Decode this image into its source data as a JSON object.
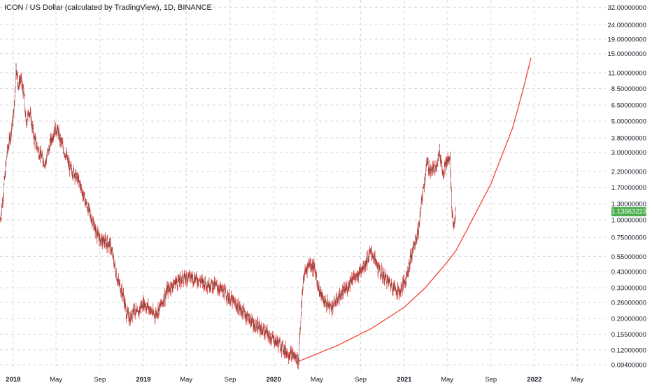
{
  "header": {
    "title": "ICON / US Dollar (calculated by TradingView), 1D, BINANCE"
  },
  "current_price": {
    "label": "1.13663223",
    "value": 1.13663223,
    "color": "#4caf50"
  },
  "colors": {
    "candle": "#d84a4a",
    "trend": "#f44336",
    "grid": "#d8d8d8"
  },
  "chart_data": {
    "type": "line",
    "title": "ICON / US Dollar (calculated by TradingView), 1D, BINANCE",
    "y_scale": "log",
    "ylim": [
      0.085,
      36
    ],
    "xlim": [
      "2017-11-25",
      "2022-07-20"
    ],
    "grid": true,
    "y_ticks": [
      {
        "label": "32.00000000",
        "value": 32
      },
      {
        "label": "24.00000000",
        "value": 24
      },
      {
        "label": "19.00000000",
        "value": 19
      },
      {
        "label": "15.00000000",
        "value": 15
      },
      {
        "label": "11.00000000",
        "value": 11
      },
      {
        "label": "8.50000000",
        "value": 8.5
      },
      {
        "label": "6.50000000",
        "value": 6.5
      },
      {
        "label": "5.00000000",
        "value": 5
      },
      {
        "label": "3.80000000",
        "value": 3.8
      },
      {
        "label": "3.00000000",
        "value": 3
      },
      {
        "label": "2.20000000",
        "value": 2.2
      },
      {
        "label": "1.70000000",
        "value": 1.7
      },
      {
        "label": "1.30000000",
        "value": 1.3
      },
      {
        "label": "1.00000000",
        "value": 1.0
      },
      {
        "label": "0.75000000",
        "value": 0.75
      },
      {
        "label": "0.55000000",
        "value": 0.55
      },
      {
        "label": "0.43000000",
        "value": 0.43
      },
      {
        "label": "0.33000000",
        "value": 0.33
      },
      {
        "label": "0.26000000",
        "value": 0.26
      },
      {
        "label": "0.20000000",
        "value": 0.2
      },
      {
        "label": "0.15500000",
        "value": 0.155
      },
      {
        "label": "0.12000000",
        "value": 0.12
      },
      {
        "label": "0.09400000",
        "value": 0.094
      }
    ],
    "x_ticks": [
      {
        "label": "2018",
        "date": "2018-01-01",
        "bold": true
      },
      {
        "label": "May",
        "date": "2018-05-01",
        "bold": false
      },
      {
        "label": "Sep",
        "date": "2018-09-01",
        "bold": false
      },
      {
        "label": "2019",
        "date": "2019-01-01",
        "bold": true
      },
      {
        "label": "May",
        "date": "2019-05-01",
        "bold": false
      },
      {
        "label": "Sep",
        "date": "2019-09-01",
        "bold": false
      },
      {
        "label": "2020",
        "date": "2020-01-01",
        "bold": true
      },
      {
        "label": "May",
        "date": "2020-05-01",
        "bold": false
      },
      {
        "label": "Sep",
        "date": "2020-09-01",
        "bold": false
      },
      {
        "label": "2021",
        "date": "2021-01-01",
        "bold": true
      },
      {
        "label": "May",
        "date": "2021-05-01",
        "bold": false
      },
      {
        "label": "Sep",
        "date": "2021-09-01",
        "bold": false
      },
      {
        "label": "2022",
        "date": "2022-01-01",
        "bold": true
      },
      {
        "label": "May",
        "date": "2022-05-01",
        "bold": false
      }
    ],
    "price_series": {
      "x": [
        "2017-11-26",
        "2017-12-05",
        "2017-12-15",
        "2017-12-25",
        "2018-01-05",
        "2018-01-09",
        "2018-01-15",
        "2018-01-22",
        "2018-02-01",
        "2018-02-06",
        "2018-02-15",
        "2018-03-01",
        "2018-03-15",
        "2018-04-01",
        "2018-04-15",
        "2018-04-28",
        "2018-05-05",
        "2018-05-20",
        "2018-06-10",
        "2018-06-25",
        "2018-07-10",
        "2018-07-25",
        "2018-08-10",
        "2018-08-20",
        "2018-09-01",
        "2018-09-15",
        "2018-10-01",
        "2018-10-20",
        "2018-11-05",
        "2018-11-14",
        "2018-11-25",
        "2018-12-05",
        "2018-12-15",
        "2018-12-30",
        "2019-01-15",
        "2019-02-01",
        "2019-02-20",
        "2019-03-10",
        "2019-04-01",
        "2019-04-20",
        "2019-05-10",
        "2019-06-01",
        "2019-06-20",
        "2019-07-10",
        "2019-08-01",
        "2019-08-20",
        "2019-09-10",
        "2019-09-25",
        "2019-10-10",
        "2019-10-25",
        "2019-11-10",
        "2019-11-25",
        "2019-12-10",
        "2019-12-20",
        "2020-01-05",
        "2020-01-20",
        "2020-02-01",
        "2020-02-10",
        "2020-02-25",
        "2020-03-05",
        "2020-03-12",
        "2020-03-13",
        "2020-03-25",
        "2020-04-10",
        "2020-04-25",
        "2020-05-10",
        "2020-05-25",
        "2020-06-10",
        "2020-06-25",
        "2020-07-10",
        "2020-07-25",
        "2020-08-10",
        "2020-08-20",
        "2020-09-01",
        "2020-09-15",
        "2020-10-01",
        "2020-10-20",
        "2020-11-05",
        "2020-11-20",
        "2020-12-05",
        "2020-12-20",
        "2021-01-05",
        "2021-01-20",
        "2021-02-01",
        "2021-02-10",
        "2021-02-20",
        "2021-03-05",
        "2021-03-20",
        "2021-04-01",
        "2021-04-10",
        "2021-04-20",
        "2021-05-01",
        "2021-05-10",
        "2021-05-14",
        "2021-05-19",
        "2021-05-25"
      ],
      "y": [
        1.0,
        1.6,
        3.0,
        4.0,
        6.5,
        12.5,
        9.0,
        10.0,
        7.5,
        4.8,
        6.0,
        3.8,
        3.0,
        2.5,
        3.5,
        4.5,
        4.3,
        3.3,
        2.3,
        2.1,
        1.7,
        1.3,
        1.0,
        0.85,
        0.72,
        0.7,
        0.66,
        0.38,
        0.3,
        0.22,
        0.2,
        0.24,
        0.21,
        0.26,
        0.24,
        0.21,
        0.25,
        0.32,
        0.36,
        0.38,
        0.4,
        0.38,
        0.36,
        0.35,
        0.33,
        0.3,
        0.26,
        0.24,
        0.22,
        0.2,
        0.18,
        0.17,
        0.16,
        0.15,
        0.14,
        0.13,
        0.12,
        0.115,
        0.11,
        0.105,
        0.1,
        0.14,
        0.4,
        0.5,
        0.45,
        0.3,
        0.26,
        0.24,
        0.27,
        0.3,
        0.33,
        0.4,
        0.38,
        0.45,
        0.5,
        0.6,
        0.45,
        0.4,
        0.36,
        0.33,
        0.31,
        0.38,
        0.55,
        0.7,
        0.85,
        1.4,
        2.5,
        2.2,
        2.5,
        3.0,
        2.2,
        2.6,
        2.7,
        1.3,
        0.9,
        1.1
      ]
    },
    "trend_curve": {
      "x": [
        "2020-03-13",
        "2020-07-01",
        "2020-10-01",
        "2021-01-01",
        "2021-03-01",
        "2021-05-01",
        "2021-05-25",
        "2021-07-01",
        "2021-09-01",
        "2021-11-01",
        "2021-12-01",
        "2021-12-22"
      ],
      "y": [
        0.1,
        0.13,
        0.17,
        0.24,
        0.33,
        0.5,
        0.6,
        0.9,
        1.8,
        4.5,
        8.5,
        14.0
      ]
    }
  }
}
